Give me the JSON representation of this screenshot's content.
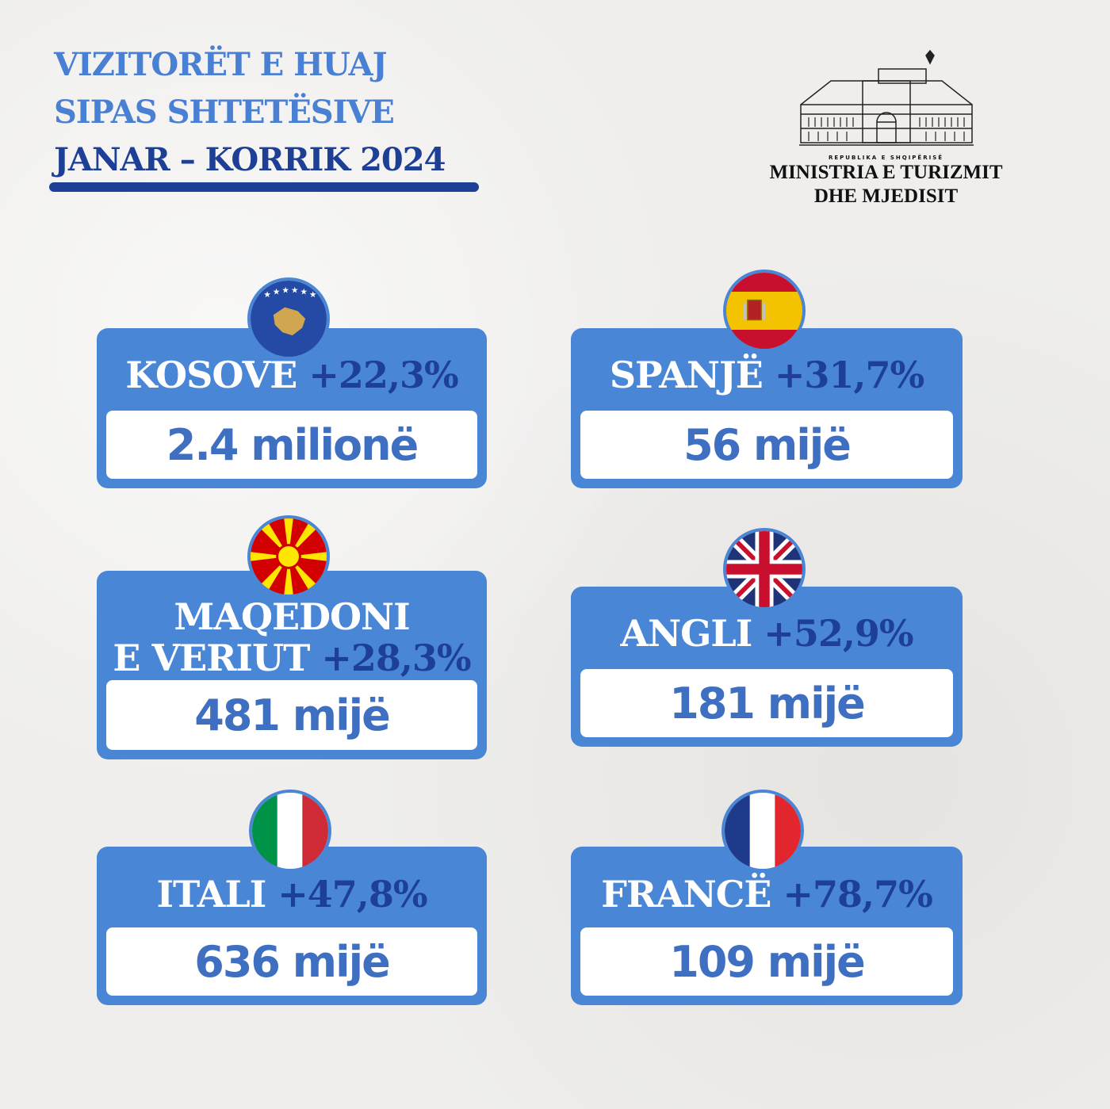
{
  "title": {
    "line1": "VIZITORËT E HUAJ",
    "line2": "SIPAS SHTETËSIVE",
    "line3": "JANAR – KORRIK 2024"
  },
  "logo": {
    "small": "REPUBLIKA E SHQIPËRISË",
    "line1": "MINISTRIA E TURIZMIT",
    "line2": "DHE MJEDISIT"
  },
  "cards": [
    {
      "country": "KOSOVË",
      "change": "+22,3%",
      "visitors": "2.4 milionë"
    },
    {
      "country": "SPANJË",
      "change": "+31,7%",
      "visitors": "56 mijë"
    },
    {
      "country_line1": "MAQEDONI",
      "country_line2": "E VERIUT",
      "change": "+28,3%",
      "visitors": "481 mijë"
    },
    {
      "country": "ANGLI",
      "change": "+52,9%",
      "visitors": "181 mijë"
    },
    {
      "country": "ITALI",
      "change": "+47,8%",
      "visitors": "636 mijë"
    },
    {
      "country": "FRANCË",
      "change": "+78,7%",
      "visitors": "109 mijë"
    }
  ],
  "colors": {
    "accent_blue": "#4a86d6",
    "dark_blue": "#1d3f96",
    "background": "#efeeec"
  }
}
